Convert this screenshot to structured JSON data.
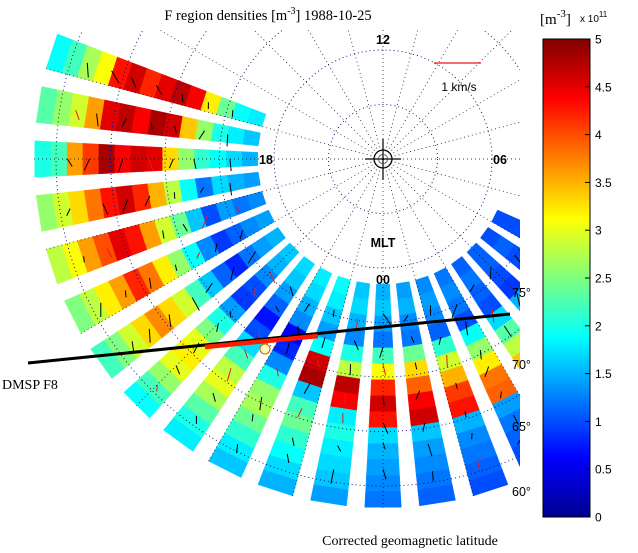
{
  "chart_data": {
    "type": "heatmap",
    "title": "F region densities [m",
    "title_exp": "-3",
    "title_date": "] 1988-10-25",
    "xlabel": "Corrected geomagnetic latitude",
    "projection": "polar, MLT vs corrected geomagnetic latitude",
    "mlt_labels": [
      "12",
      "18",
      "06",
      "00"
    ],
    "mlt_axis_label": "MLT",
    "latitude_labels": [
      "75°",
      "70°",
      "65°",
      "60°"
    ],
    "latitudes": [
      75,
      70,
      65,
      60
    ],
    "lat_range": [
      58,
      90
    ],
    "velocity_scale_label": "1 km/s",
    "satellite_track_label": "DMSP F8",
    "colorbar": {
      "unit_open": "[m",
      "unit_exp": "-3",
      "unit_close": "]",
      "multiplier_base": "x 10",
      "multiplier_exp": "11",
      "ticks": [
        "0",
        "0.5",
        "1",
        "1.5",
        "2",
        "2.5",
        "3",
        "3.5",
        "4",
        "4.5",
        "5"
      ],
      "range": [
        0,
        5
      ],
      "colormap": "jet"
    },
    "density_scans": [
      {
        "mlt": 16.8,
        "values": [
          1.8,
          1.9,
          2.4,
          3.2,
          4.4,
          4.7,
          4.5,
          4.2,
          4.6,
          4.3,
          3.1,
          2.7,
          2.2,
          1.9
        ]
      },
      {
        "mlt": 17.4,
        "values": [
          1.6,
          1.8,
          2.0,
          2.6,
          3.4,
          4.6,
          4.8,
          4.4,
          4.7,
          4.5,
          3.6,
          2.9,
          2.6,
          2.3
        ]
      },
      {
        "mlt": 18.0,
        "values": [
          1.5,
          1.7,
          1.9,
          2.1,
          2.6,
          3.3,
          4.5,
          4.6,
          4.4,
          4.8,
          4.1,
          3.6,
          2.2,
          2.0
        ]
      },
      {
        "mlt": 18.6,
        "values": [
          1.4,
          1.5,
          1.7,
          1.2,
          1.9,
          2.8,
          3.5,
          4.2,
          4.6,
          4.3,
          3.8,
          3.3,
          2.9,
          2.6
        ]
      },
      {
        "mlt": 19.2,
        "values": [
          1.3,
          1.2,
          1.4,
          1.0,
          1.6,
          2.4,
          2.9,
          3.6,
          4.3,
          4.5,
          4.0,
          3.6,
          3.1,
          2.8
        ]
      },
      {
        "mlt": 19.8,
        "values": [
          1.4,
          1.3,
          1.1,
          0.9,
          1.3,
          1.9,
          2.6,
          3.2,
          3.8,
          4.2,
          3.6,
          3.2,
          2.8,
          2.5
        ]
      },
      {
        "mlt": 20.4,
        "values": [
          1.5,
          1.4,
          1.2,
          0.8,
          1.1,
          1.6,
          2.2,
          2.9,
          3.3,
          3.7,
          3.3,
          2.9,
          2.5,
          2.2
        ]
      },
      {
        "mlt": 21.0,
        "values": [
          1.6,
          1.5,
          1.3,
          1.0,
          0.9,
          1.4,
          2.0,
          2.5,
          3.0,
          3.2,
          3.0,
          2.6,
          2.2,
          1.9
        ]
      },
      {
        "mlt": 21.6,
        "values": [
          1.7,
          1.6,
          1.4,
          1.1,
          0.7,
          1.0,
          1.7,
          2.2,
          2.8,
          3.0,
          2.7,
          2.3,
          2.0,
          1.8
        ]
      },
      {
        "mlt": 22.2,
        "values": [
          1.8,
          1.7,
          1.5,
          1.3,
          0.6,
          0.8,
          1.3,
          2.0,
          2.6,
          2.7,
          2.4,
          2.1,
          1.8,
          1.6
        ]
      },
      {
        "mlt": 22.8,
        "values": [
          1.9,
          1.8,
          1.6,
          1.4,
          1.9,
          4.6,
          4.8,
          1.6,
          2.2,
          2.4,
          2.1,
          1.9,
          1.7,
          1.5
        ]
      },
      {
        "mlt": 23.4,
        "values": [
          1.6,
          1.7,
          1.5,
          1.3,
          2.0,
          2.8,
          4.7,
          4.4,
          1.8,
          2.0,
          1.8,
          1.7,
          1.6,
          1.4
        ]
      },
      {
        "mlt": 0.0,
        "values": [
          1.5,
          1.6,
          1.4,
          1.2,
          2.2,
          3.1,
          4.2,
          4.6,
          4.3,
          1.7,
          1.5,
          1.4,
          1.3,
          1.2
        ]
      },
      {
        "mlt": 0.6,
        "values": [
          1.4,
          1.5,
          1.3,
          1.2,
          2.4,
          3.3,
          3.9,
          4.4,
          4.6,
          1.6,
          1.4,
          1.3,
          1.2,
          1.1
        ]
      },
      {
        "mlt": 1.2,
        "values": [
          1.3,
          1.4,
          1.3,
          1.1,
          2.1,
          2.9,
          3.5,
          4.1,
          4.3,
          1.5,
          1.3,
          1.2,
          1.1,
          1.0
        ]
      },
      {
        "mlt": 1.8,
        "values": [
          1.2,
          1.3,
          1.2,
          1.0,
          1.9,
          2.6,
          3.2,
          3.8,
          3.9,
          1.4,
          1.2,
          1.1,
          1.0,
          0.9
        ]
      },
      {
        "mlt": 2.4,
        "values": [
          1.1,
          1.2,
          1.1,
          1.0,
          1.7,
          2.3,
          2.8,
          3.4,
          3.6,
          1.3,
          1.1,
          1.0,
          0.9,
          0.9
        ]
      },
      {
        "mlt": 3.0,
        "values": [
          1.1,
          1.1,
          1.0,
          0.9,
          1.5,
          2.1,
          2.5,
          3.0,
          3.2,
          1.2,
          1.0,
          1.0,
          0.9,
          0.8
        ]
      },
      {
        "mlt": 3.6,
        "values": [
          1.0,
          1.1,
          1.0,
          0.9,
          1.4,
          1.9,
          2.2,
          2.7,
          2.9,
          1.1,
          1.0,
          0.9,
          0.8,
          0.8
        ]
      },
      {
        "mlt": 4.2,
        "values": [
          1.0,
          1.0,
          0.9,
          0.8,
          1.3,
          1.7,
          2.0,
          2.4,
          2.6,
          1.0,
          0.9,
          0.9,
          0.8,
          0.7
        ]
      }
    ],
    "colors": {
      "track": "#000000",
      "track_highlight": "#ff1a00",
      "velocity_vectors": "#000000",
      "velocity_vectors_alt": "#e8191c",
      "grid": "#00007a"
    }
  }
}
